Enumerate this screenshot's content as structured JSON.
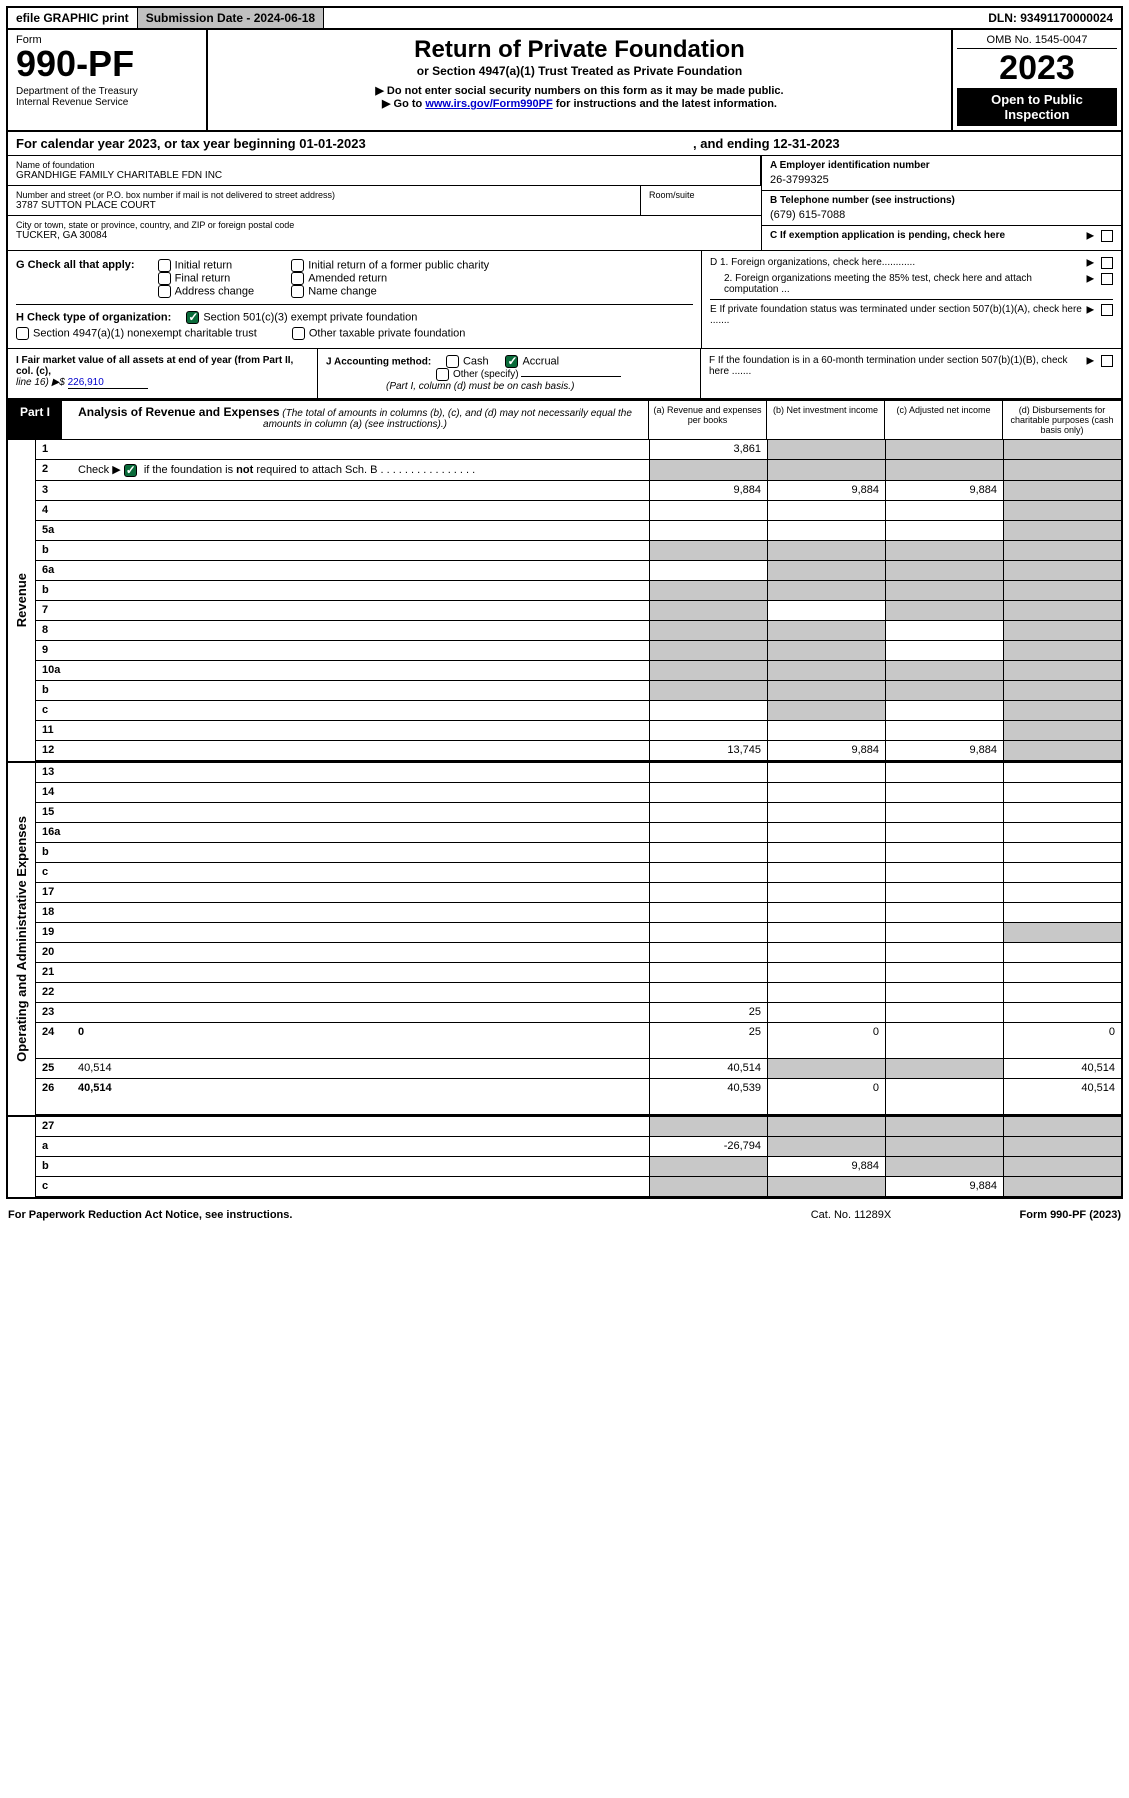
{
  "topbar": {
    "efile": "efile GRAPHIC print",
    "subdate_lbl": "Submission Date - ",
    "subdate": "2024-06-18",
    "dln_lbl": "DLN: ",
    "dln": "93491170000024"
  },
  "header": {
    "form_word": "Form",
    "form_no": "990-PF",
    "dept1": "Department of the Treasury",
    "dept2": "Internal Revenue Service",
    "title": "Return of Private Foundation",
    "subtitle": "or Section 4947(a)(1) Trust Treated as Private Foundation",
    "note1": "▶ Do not enter social security numbers on this form as it may be made public.",
    "note2_pre": "▶ Go to ",
    "note2_link": "www.irs.gov/Form990PF",
    "note2_post": " for instructions and the latest information.",
    "omb": "OMB No. 1545-0047",
    "year": "2023",
    "open": "Open to Public Inspection"
  },
  "cal": {
    "text_l": "For calendar year 2023, or tax year beginning 01-01-2023",
    "text_r": ", and ending 12-31-2023"
  },
  "info": {
    "name_lbl": "Name of foundation",
    "name": "GRANDHIGE FAMILY CHARITABLE FDN INC",
    "addr_lbl": "Number and street (or P.O. box number if mail is not delivered to street address)",
    "addr": "3787 SUTTON PLACE COURT",
    "room_lbl": "Room/suite",
    "city_lbl": "City or town, state or province, country, and ZIP or foreign postal code",
    "city": "TUCKER, GA  30084",
    "ein_lbl": "A Employer identification number",
    "ein": "26-3799325",
    "tel_lbl": "B Telephone number (see instructions)",
    "tel": "(679) 615-7088",
    "c": "C If exemption application is pending, check here",
    "d1": "D 1. Foreign organizations, check here............",
    "d2": "2. Foreign organizations meeting the 85% test, check here and attach computation ...",
    "e": "E  If private foundation status was terminated under section 507(b)(1)(A), check here .......",
    "f": "F  If the foundation is in a 60-month termination under section 507(b)(1)(B), check here ......."
  },
  "g": {
    "lbl": "G Check all that apply:",
    "o1": "Initial return",
    "o2": "Final return",
    "o3": "Address change",
    "o4": "Initial return of a former public charity",
    "o5": "Amended return",
    "o6": "Name change"
  },
  "h": {
    "lbl": "H Check type of organization:",
    "o1": "Section 501(c)(3) exempt private foundation",
    "o2": "Section 4947(a)(1) nonexempt charitable trust",
    "o3": "Other taxable private foundation"
  },
  "i": {
    "lbl": "I Fair market value of all assets at end of year (from Part II, col. (c),",
    "line": "line 16) ▶$ ",
    "val": "226,910"
  },
  "j": {
    "lbl": "J Accounting method:",
    "o1": "Cash",
    "o2": "Accrual",
    "o3": "Other (specify)",
    "note": "(Part I, column (d) must be on cash basis.)"
  },
  "part1": {
    "tab": "Part I",
    "title": "Analysis of Revenue and Expenses",
    "sub": " (The total of amounts in columns (b), (c), and (d) may not necessarily equal the amounts in column (a) (see instructions).)",
    "ca": "(a)   Revenue and expenses per books",
    "cb": "(b)   Net investment income",
    "cc": "(c)  Adjusted net income",
    "cd": "(d)  Disbursements for charitable purposes (cash basis only)"
  },
  "sides": {
    "rev": "Revenue",
    "exp": "Operating and Administrative Expenses"
  },
  "rows": [
    {
      "n": "1",
      "d": "",
      "a": "3,861",
      "b": "",
      "c": "",
      "sb": true,
      "sc": true,
      "sd": true
    },
    {
      "n": "2",
      "d": "",
      "a": "",
      "b": "",
      "c": "",
      "sa": true,
      "sb": true,
      "sc": true,
      "sd": true,
      "ck": true
    },
    {
      "n": "3",
      "d": "",
      "a": "9,884",
      "b": "9,884",
      "c": "9,884",
      "sd": true
    },
    {
      "n": "4",
      "d": "",
      "a": "",
      "b": "",
      "c": "",
      "sd": true
    },
    {
      "n": "5a",
      "d": "",
      "a": "",
      "b": "",
      "c": "",
      "sd": true
    },
    {
      "n": "b",
      "d": "",
      "a": "",
      "b": "",
      "c": "",
      "sa": true,
      "sb": true,
      "sc": true,
      "sd": true
    },
    {
      "n": "6a",
      "d": "",
      "a": "",
      "b": "",
      "c": "",
      "sb": true,
      "sc": true,
      "sd": true
    },
    {
      "n": "b",
      "d": "",
      "a": "",
      "b": "",
      "c": "",
      "sa": true,
      "sb": true,
      "sc": true,
      "sd": true
    },
    {
      "n": "7",
      "d": "",
      "a": "",
      "b": "",
      "c": "",
      "sa": true,
      "sc": true,
      "sd": true
    },
    {
      "n": "8",
      "d": "",
      "a": "",
      "b": "",
      "c": "",
      "sa": true,
      "sb": true,
      "sd": true
    },
    {
      "n": "9",
      "d": "",
      "a": "",
      "b": "",
      "c": "",
      "sa": true,
      "sb": true,
      "sd": true
    },
    {
      "n": "10a",
      "d": "",
      "a": "",
      "b": "",
      "c": "",
      "sa": true,
      "sb": true,
      "sc": true,
      "sd": true
    },
    {
      "n": "b",
      "d": "",
      "a": "",
      "b": "",
      "c": "",
      "sa": true,
      "sb": true,
      "sc": true,
      "sd": true
    },
    {
      "n": "c",
      "d": "",
      "a": "",
      "b": "",
      "c": "",
      "sb": true,
      "sd": true
    },
    {
      "n": "11",
      "d": "",
      "a": "",
      "b": "",
      "c": "",
      "sd": true
    },
    {
      "n": "12",
      "d": "",
      "a": "13,745",
      "b": "9,884",
      "c": "9,884",
      "sd": true,
      "bold": true
    }
  ],
  "exprows": [
    {
      "n": "13",
      "d": "",
      "a": "",
      "b": "",
      "c": ""
    },
    {
      "n": "14",
      "d": "",
      "a": "",
      "b": "",
      "c": ""
    },
    {
      "n": "15",
      "d": "",
      "a": "",
      "b": "",
      "c": ""
    },
    {
      "n": "16a",
      "d": "",
      "a": "",
      "b": "",
      "c": ""
    },
    {
      "n": "b",
      "d": "",
      "a": "",
      "b": "",
      "c": ""
    },
    {
      "n": "c",
      "d": "",
      "a": "",
      "b": "",
      "c": ""
    },
    {
      "n": "17",
      "d": "",
      "a": "",
      "b": "",
      "c": ""
    },
    {
      "n": "18",
      "d": "",
      "a": "",
      "b": "",
      "c": ""
    },
    {
      "n": "19",
      "d": "",
      "a": "",
      "b": "",
      "c": "",
      "sd": true
    },
    {
      "n": "20",
      "d": "",
      "a": "",
      "b": "",
      "c": ""
    },
    {
      "n": "21",
      "d": "",
      "a": "",
      "b": "",
      "c": ""
    },
    {
      "n": "22",
      "d": "",
      "a": "",
      "b": "",
      "c": ""
    },
    {
      "n": "23",
      "d": "",
      "a": "25",
      "b": "",
      "c": ""
    },
    {
      "n": "24",
      "d": "0",
      "a": "25",
      "b": "0",
      "c": "",
      "bold": true,
      "tall": true
    },
    {
      "n": "25",
      "d": "40,514",
      "a": "40,514",
      "b": "",
      "c": "",
      "sb": true,
      "sc": true
    },
    {
      "n": "26",
      "d": "40,514",
      "a": "40,539",
      "b": "0",
      "c": "",
      "bold": true,
      "tall": true
    }
  ],
  "sumrows": [
    {
      "n": "27",
      "d": "",
      "a": "",
      "b": "",
      "c": "",
      "sa": true,
      "sb": true,
      "sc": true,
      "sd": true
    },
    {
      "n": "a",
      "d": "",
      "a": "-26,794",
      "b": "",
      "c": "",
      "sb": true,
      "sc": true,
      "sd": true,
      "bold": true
    },
    {
      "n": "b",
      "d": "",
      "a": "",
      "b": "9,884",
      "c": "",
      "sa": true,
      "sc": true,
      "sd": true,
      "bold": true
    },
    {
      "n": "c",
      "d": "",
      "a": "",
      "b": "",
      "c": "9,884",
      "sa": true,
      "sb": true,
      "sd": true,
      "bold": true
    }
  ],
  "footer": {
    "l": "For Paperwork Reduction Act Notice, see instructions.",
    "m": "Cat. No. 11289X",
    "r": "Form 990-PF (2023)"
  }
}
